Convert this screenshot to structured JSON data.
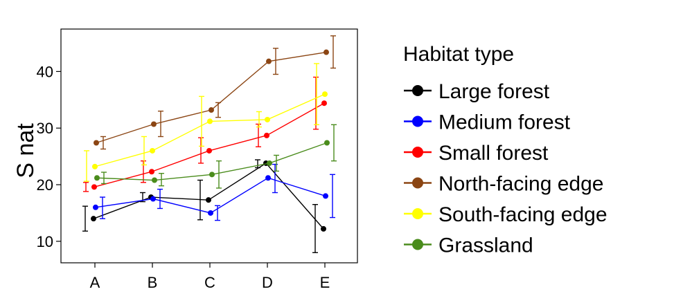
{
  "chart_data": {
    "type": "line",
    "title": "",
    "xlabel": "",
    "ylabel": "S nat",
    "categories": [
      "A",
      "B",
      "C",
      "D",
      "E"
    ],
    "ylim": [
      6.2,
      47.5
    ],
    "yticks": [
      10,
      20,
      30,
      40
    ],
    "grid": false,
    "legend_title": "Habitat type",
    "legend_position": "right",
    "series": [
      {
        "name": "Large forest",
        "color": "#000000",
        "values": [
          14.0,
          17.8,
          17.3,
          23.8,
          12.2
        ],
        "err_low": [
          11.8,
          17.0,
          13.8,
          23.0,
          8.0
        ],
        "err_high": [
          16.2,
          18.6,
          20.8,
          24.4,
          16.5
        ]
      },
      {
        "name": "Medium forest",
        "color": "#0000ff",
        "values": [
          16.0,
          17.5,
          15.0,
          21.2,
          18.0
        ],
        "err_low": [
          14.0,
          15.8,
          13.7,
          18.6,
          14.2
        ],
        "err_high": [
          17.8,
          19.2,
          16.3,
          23.6,
          21.8
        ]
      },
      {
        "name": "Small forest",
        "color": "#ff0000",
        "values": [
          19.6,
          22.3,
          26.0,
          28.7,
          34.4
        ],
        "err_low": [
          18.8,
          20.4,
          23.8,
          26.7,
          29.8
        ],
        "err_high": [
          20.4,
          24.2,
          28.3,
          30.7,
          39.0
        ]
      },
      {
        "name": "North-facing edge",
        "color": "#8b4513",
        "values": [
          27.4,
          30.7,
          33.2,
          41.8,
          43.4
        ],
        "err_low": [
          26.3,
          28.5,
          31.9,
          39.5,
          40.6
        ],
        "err_high": [
          28.5,
          33.0,
          34.5,
          44.1,
          46.3
        ]
      },
      {
        "name": "South-facing edge",
        "color": "#ffff00",
        "values": [
          23.2,
          26.0,
          31.2,
          31.5,
          36.0
        ],
        "err_low": [
          20.6,
          23.5,
          26.8,
          30.2,
          30.6
        ],
        "err_high": [
          26.0,
          28.5,
          35.6,
          32.9,
          41.4
        ]
      },
      {
        "name": "Grassland",
        "color": "#4a8c1c",
        "values": [
          21.2,
          20.8,
          21.8,
          23.8,
          27.4
        ],
        "err_low": [
          20.2,
          19.8,
          19.4,
          22.4,
          24.2
        ],
        "err_high": [
          22.2,
          22.0,
          24.2,
          25.2,
          30.6
        ]
      }
    ]
  }
}
